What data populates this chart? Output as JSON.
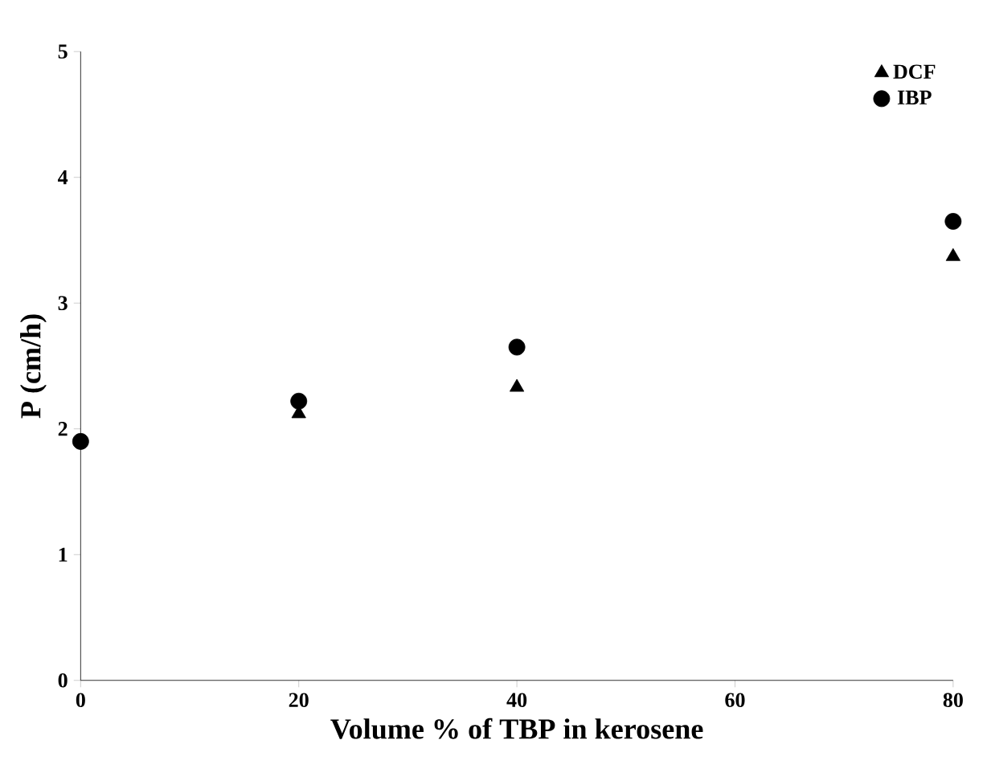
{
  "chart_data": {
    "type": "scatter",
    "xlabel": "Volume % of  TBP in kerosene",
    "ylabel": "P (cm/h)",
    "x": [
      0,
      20,
      40,
      80
    ],
    "series": [
      {
        "name": "DCF",
        "color": "#000000",
        "marker": "triangle",
        "values": [
          null,
          2.12,
          2.33,
          3.37
        ]
      },
      {
        "name": "IBP",
        "color": "#000000",
        "marker": "circle",
        "values": [
          1.9,
          2.22,
          2.65,
          3.65
        ]
      }
    ],
    "xlim": [
      0,
      80
    ],
    "ylim": [
      0,
      5
    ],
    "xticks": [
      0,
      20,
      40,
      60,
      80
    ],
    "yticks": [
      0,
      1,
      2,
      3,
      4,
      5
    ],
    "grid": false,
    "legend": "top right"
  }
}
